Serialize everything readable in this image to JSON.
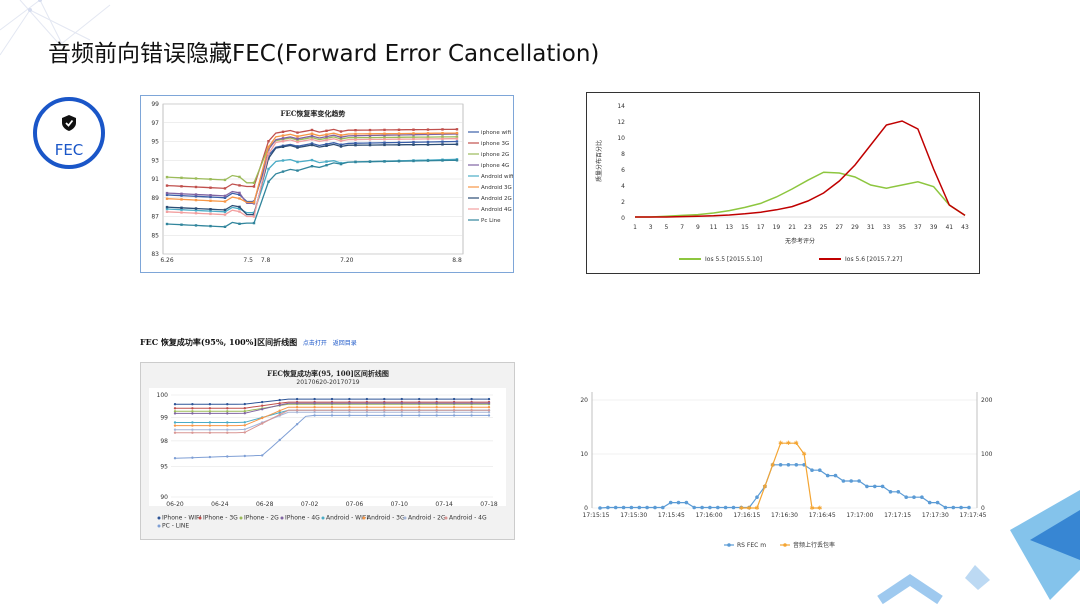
{
  "slide": {
    "title": "音频前向错误隐藏FEC(Forward Error Cancellation)",
    "badge_label": "FEC",
    "section_title": "FEC 恢复成功率(95%, 100%]区间折线图",
    "section_links": [
      "点击打开",
      "返回目录"
    ]
  },
  "colors": {
    "accent": "#1a56c8",
    "green": "#8dc63f",
    "red": "#c00000"
  },
  "chart_data": [
    {
      "type": "line",
      "title": "FEC恢复率变化趋势",
      "categories": [
        "6.26",
        "7.5",
        "7.8",
        "7.20",
        "8.8"
      ],
      "ylim": [
        83,
        99
      ],
      "yticks": [
        "83",
        "85",
        "87",
        "89",
        "91",
        "93",
        "95",
        "97",
        "99"
      ],
      "series": [
        {
          "name": "iphone wifi",
          "color": "#3a5fa8",
          "values": [
            89.3,
            88.6,
            94.5,
            94.8,
            95.0
          ]
        },
        {
          "name": "iphone 3G",
          "color": "#c0504d",
          "values": [
            90.3,
            90.2,
            96.0,
            96.2,
            96.3
          ]
        },
        {
          "name": "iphone 2G",
          "color": "#9bbb59",
          "values": [
            91.2,
            90.6,
            95.2,
            95.4,
            95.5
          ]
        },
        {
          "name": "iphone 4G",
          "color": "#8064a2",
          "values": [
            89.5,
            88.4,
            95.3,
            95.6,
            95.8
          ]
        },
        {
          "name": "Android wifi",
          "color": "#4bacc6",
          "values": [
            87.8,
            87.4,
            93.0,
            92.8,
            93.1
          ]
        },
        {
          "name": "Android 3G",
          "color": "#f79646",
          "values": [
            88.9,
            88.5,
            95.6,
            95.8,
            95.9
          ]
        },
        {
          "name": "Android 2G",
          "color": "#2c4d75",
          "values": [
            88.0,
            87.2,
            94.4,
            94.6,
            94.7
          ]
        },
        {
          "name": "Android 4G",
          "color": "#f2a0a0",
          "values": [
            87.5,
            87.0,
            95.0,
            95.2,
            95.3
          ]
        },
        {
          "name": "Pc Line",
          "color": "#31859c",
          "values": [
            86.2,
            86.3,
            91.6,
            92.8,
            93.0
          ]
        }
      ],
      "legend": [
        "iphone wifi",
        "iphone 3G",
        "iphone 2G",
        "iphone 4G",
        "Android wifi",
        "Android 3G",
        "Android 2G",
        "Android 4G",
        "Pc Line"
      ]
    },
    {
      "type": "line",
      "ylabel": "质量分布百分比",
      "xlabel": "无参考评分",
      "ylim": [
        0,
        14
      ],
      "yticks": [
        "0",
        "2",
        "4",
        "6",
        "8",
        "10",
        "12",
        "14"
      ],
      "xticks": [
        "1",
        "3",
        "5",
        "7",
        "9",
        "11",
        "13",
        "15",
        "17",
        "19",
        "21",
        "23",
        "25",
        "27",
        "29",
        "31",
        "33",
        "35",
        "37",
        "39",
        "41",
        "43"
      ],
      "series": [
        {
          "name": "Ios 5.5 [2015.5.10]",
          "color": "#8dc63f",
          "values": [
            0,
            0,
            0.1,
            0.2,
            0.3,
            0.5,
            0.8,
            1.2,
            1.7,
            2.5,
            3.5,
            4.6,
            5.6,
            5.5,
            5.0,
            4.0,
            3.6,
            4.0,
            4.4,
            3.8,
            1.5,
            0.2
          ]
        },
        {
          "name": "Ios 5.6 [2015.7.27]",
          "color": "#c00000",
          "values": [
            0,
            0,
            0,
            0.05,
            0.1,
            0.15,
            0.25,
            0.4,
            0.6,
            0.9,
            1.3,
            2.0,
            3.0,
            4.5,
            6.5,
            9.0,
            11.5,
            12.0,
            11.0,
            6.0,
            1.5,
            0.2
          ]
        }
      ]
    },
    {
      "type": "line",
      "title": "FEC恢复成功率(95, 100]区间折线图",
      "subtitle": "20170620-20170719",
      "xticks": [
        "06-20",
        "06-24",
        "06-28",
        "07-02",
        "07-06",
        "07-10",
        "07-14",
        "07-18"
      ],
      "yticks": [
        "90",
        "95",
        "98",
        "99",
        "100"
      ],
      "series": [
        {
          "name": "IPhone - WIFI",
          "color": "#2e5597"
        },
        {
          "name": "IPhone - 3G",
          "color": "#c0504d"
        },
        {
          "name": "IPhone - 2G",
          "color": "#9bbb59"
        },
        {
          "name": "IPhone - 4G",
          "color": "#8064a2"
        },
        {
          "name": "Android - WIFI",
          "color": "#4bacc6"
        },
        {
          "name": "Android - 3G",
          "color": "#f79646"
        },
        {
          "name": "Android - 2G",
          "color": "#a5b6d8"
        },
        {
          "name": "Android - 4G",
          "color": "#d99694"
        },
        {
          "name": "PC - LINE",
          "color": "#7f9fd5"
        }
      ]
    },
    {
      "type": "line",
      "xticks": [
        "17:15:15",
        "17:15:30",
        "17:15:45",
        "17:16:00",
        "17:16:15",
        "17:16:30",
        "17:16:45",
        "17:17:00",
        "17:17:15",
        "17:17:30",
        "17:17:45"
      ],
      "yticks_left": [
        "0",
        "10",
        "20"
      ],
      "yticks_right": [
        "0",
        "100",
        "200"
      ],
      "series": [
        {
          "name": "RS FEC m",
          "color": "#5b9bd5"
        },
        {
          "name": "音频上行丢包率",
          "color": "#f4a533"
        }
      ]
    }
  ]
}
